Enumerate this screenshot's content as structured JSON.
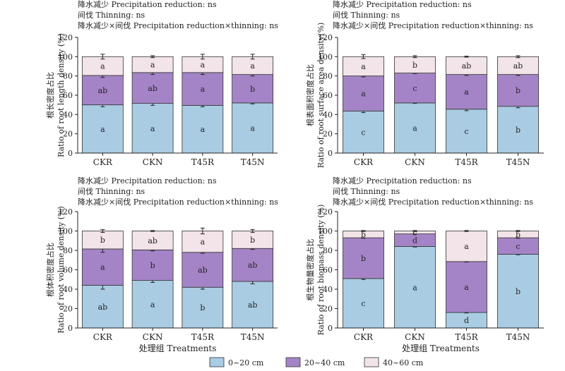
{
  "colors": {
    "0~20 cm": "#a9cce3",
    "20~40 cm": "#a484c6",
    "40~60 cm": "#f2e4e8"
  },
  "legend": [
    "0~20 cm",
    "20~40 cm",
    "40~60 cm"
  ],
  "chart_data": [
    {
      "type": "bar",
      "stacked": true,
      "stats_lines": [
        "降水减少 Precipitation reduction: ns",
        "间伐 Thinning: ns",
        "降水减少×间伐 Precipitation reduction×thinning: ns"
      ],
      "ylabel_lines": [
        "根长密度占比",
        "Ratio of root length density (%)"
      ],
      "xlabel": "",
      "ylim": [
        0,
        120
      ],
      "yticks": [
        0,
        20,
        40,
        60,
        80,
        100,
        120
      ],
      "categories": [
        "CKR",
        "CKN",
        "T45R",
        "T45N"
      ],
      "series": [
        {
          "name": "0~20 cm",
          "values": [
            50,
            51.5,
            49.5,
            52
          ],
          "errors": [
            2,
            2,
            1.5,
            1
          ],
          "letters": [
            "a",
            "a",
            "a",
            "a"
          ]
        },
        {
          "name": "20~40 cm",
          "values": [
            30.5,
            32,
            34,
            29.5
          ],
          "errors": [
            2,
            2,
            2,
            1.5
          ],
          "letters": [
            "ab",
            "ab",
            "a",
            "b"
          ]
        },
        {
          "name": "40~60 cm",
          "values": [
            19.5,
            16.5,
            16.5,
            18.5
          ],
          "errors": [
            2.5,
            1,
            2.5,
            2.5
          ],
          "letters": [
            "a",
            "a",
            "a",
            "a"
          ]
        }
      ]
    },
    {
      "type": "bar",
      "stacked": true,
      "stats_lines": [
        "降水减少 Precipitation reduction: ns",
        "间伐 Thinning: ns",
        "降水减少×间伐 Precipitation reduction×thinning: ns"
      ],
      "ylabel_lines": [
        "根表面积密度占比",
        "Ratio of root surface area density(%)"
      ],
      "xlabel": "",
      "ylim": [
        0,
        120
      ],
      "yticks": [
        0,
        20,
        40,
        60,
        80,
        100,
        120
      ],
      "categories": [
        "CKR",
        "CKN",
        "T45R",
        "T45N"
      ],
      "series": [
        {
          "name": "0~20 cm",
          "values": [
            43.5,
            52,
            45.5,
            48.5
          ],
          "errors": [
            1.5,
            0.5,
            1.5,
            1.5
          ],
          "letters": [
            "c",
            "a",
            "c",
            "b"
          ]
        },
        {
          "name": "20~40 cm",
          "values": [
            36.5,
            31,
            36,
            33
          ],
          "errors": [
            1,
            0.5,
            1,
            1
          ],
          "letters": [
            "a",
            "c",
            "a",
            "b"
          ]
        },
        {
          "name": "40~60 cm",
          "values": [
            20,
            17,
            18.5,
            18.5
          ],
          "errors": [
            2,
            1,
            0.5,
            1
          ],
          "letters": [
            "a",
            "b",
            "ab",
            "ab"
          ]
        }
      ]
    },
    {
      "type": "bar",
      "stacked": true,
      "stats_lines": [
        "降水减少 Precipitation reduction: ns",
        "间伐 Thinning: ns",
        "降水减少×间伐 Precipitation reduction×thinning: ns"
      ],
      "ylabel_lines": [
        "根体积密度占比",
        "Ratio of root volume density (%)"
      ],
      "xlabel": "处理组 Treatments",
      "ylim": [
        0,
        120
      ],
      "yticks": [
        0,
        20,
        40,
        60,
        80,
        100,
        120
      ],
      "categories": [
        "CKR",
        "CKN",
        "T45R",
        "T45N"
      ],
      "series": [
        {
          "name": "0~20 cm",
          "values": [
            44,
            49,
            42,
            48
          ],
          "errors": [
            4,
            2,
            2,
            2.5
          ],
          "letters": [
            "ab",
            "a",
            "b",
            "ab"
          ]
        },
        {
          "name": "20~40 cm",
          "values": [
            37.5,
            31.5,
            36,
            34
          ],
          "errors": [
            3.5,
            1,
            1,
            1
          ],
          "letters": [
            "a",
            "b",
            "ab",
            "ab"
          ]
        },
        {
          "name": "40~60 cm",
          "values": [
            18.5,
            19.5,
            22,
            18
          ],
          "errors": [
            1.5,
            0.5,
            3,
            1.5
          ],
          "letters": [
            "b",
            "ab",
            "a",
            "b"
          ]
        }
      ]
    },
    {
      "type": "bar",
      "stacked": true,
      "stats_lines": [
        "降水减少 Precipitation reduction: ns",
        "间伐 Thinning: ns",
        "降水减少×间伐 Precipitation reduction×thinning: ns"
      ],
      "ylabel_lines": [
        "根生物量密度占比",
        "Ratio of root biomass density (%)"
      ],
      "xlabel": "处理组 Treatments",
      "ylim": [
        0,
        120
      ],
      "yticks": [
        0,
        20,
        40,
        60,
        80,
        100,
        120
      ],
      "categories": [
        "CKR",
        "CKN",
        "T45R",
        "T45N"
      ],
      "series": [
        {
          "name": "0~20 cm",
          "values": [
            51,
            84,
            16,
            76
          ],
          "errors": [
            1,
            0.5,
            0.5,
            0.5
          ],
          "letters": [
            "c",
            "a",
            "d",
            "b"
          ]
        },
        {
          "name": "20~40 cm",
          "values": [
            42,
            13,
            52.5,
            17
          ],
          "errors": [
            0.5,
            0.5,
            0.5,
            0.5
          ],
          "letters": [
            "b",
            "d",
            "a",
            "c"
          ]
        },
        {
          "name": "40~60 cm",
          "values": [
            7,
            3,
            31.5,
            7
          ],
          "errors": [
            0.5,
            0.5,
            0.5,
            0.5
          ],
          "letters": [
            "b",
            "c",
            "a",
            "b"
          ]
        }
      ]
    }
  ]
}
